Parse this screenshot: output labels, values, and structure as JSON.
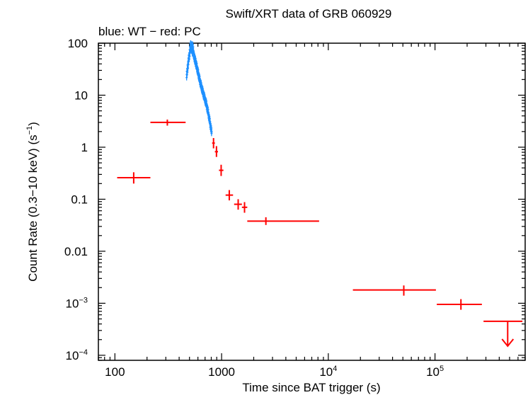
{
  "chart_data": {
    "type": "scatter",
    "title": "Swift/XRT data of GRB 060929",
    "subtitle": "blue: WT − red: PC",
    "xlabel": "Time since BAT trigger (s)",
    "ylabel_parts": {
      "main": "Count Rate (0.3−10 keV) (s",
      "exp": "−1",
      "tail": ")"
    },
    "xscale": "log",
    "yscale": "log",
    "xlim": [
      70,
      700000
    ],
    "ylim": [
      8e-05,
      100
    ],
    "x_ticks": [
      {
        "value": 100,
        "label": "100"
      },
      {
        "value": 1000,
        "label": "1000"
      },
      {
        "value": 10000,
        "base": "10",
        "exp": "4"
      },
      {
        "value": 100000,
        "base": "10",
        "exp": "5"
      }
    ],
    "y_ticks": [
      {
        "value": 100,
        "label": "100"
      },
      {
        "value": 10,
        "label": "10"
      },
      {
        "value": 1,
        "label": "1"
      },
      {
        "value": 0.1,
        "label": "0.1"
      },
      {
        "value": 0.01,
        "label": "0.01"
      },
      {
        "value": 0.001,
        "base": "10",
        "exp": "−3"
      },
      {
        "value": 0.0001,
        "base": "10",
        "exp": "−4"
      }
    ],
    "series": [
      {
        "name": "WT",
        "color": "#1e90ff",
        "mode": "WT",
        "points": [
          [
            470,
            25
          ],
          [
            478,
            30
          ],
          [
            485,
            40
          ],
          [
            492,
            50
          ],
          [
            500,
            60
          ],
          [
            506,
            75
          ],
          [
            512,
            95
          ],
          [
            518,
            80
          ],
          [
            524,
            90
          ],
          [
            530,
            70
          ],
          [
            537,
            85
          ],
          [
            545,
            65
          ],
          [
            552,
            55
          ],
          [
            560,
            50
          ],
          [
            568,
            45
          ],
          [
            576,
            40
          ],
          [
            585,
            35
          ],
          [
            595,
            30
          ],
          [
            605,
            26
          ],
          [
            615,
            22
          ],
          [
            626,
            19
          ],
          [
            638,
            16
          ],
          [
            650,
            14
          ],
          [
            663,
            12
          ],
          [
            676,
            10.5
          ],
          [
            690,
            9
          ],
          [
            705,
            7.8
          ],
          [
            720,
            6.7
          ],
          [
            735,
            5.5
          ],
          [
            750,
            4.5
          ],
          [
            765,
            3.6
          ],
          [
            780,
            2.9
          ],
          [
            795,
            2.3
          ],
          [
            810,
            1.8
          ]
        ]
      },
      {
        "name": "PC",
        "color": "#ff0000",
        "mode": "PC",
        "points": [
          {
            "x": 150,
            "x_lo": 105,
            "x_hi": 215,
            "y": 0.26,
            "y_lo": 0.2,
            "y_hi": 0.33
          },
          {
            "x": 310,
            "x_lo": 215,
            "x_hi": 460,
            "y": 3.0,
            "y_lo": 2.6,
            "y_hi": 3.4
          },
          {
            "x": 840,
            "x_lo": 815,
            "x_hi": 865,
            "y": 1.2,
            "y_lo": 0.95,
            "y_hi": 1.5
          },
          {
            "x": 895,
            "x_lo": 865,
            "x_hi": 925,
            "y": 0.82,
            "y_lo": 0.65,
            "y_hi": 1.05
          },
          {
            "x": 990,
            "x_lo": 945,
            "x_hi": 1040,
            "y": 0.36,
            "y_lo": 0.28,
            "y_hi": 0.46
          },
          {
            "x": 1180,
            "x_lo": 1090,
            "x_hi": 1280,
            "y": 0.12,
            "y_lo": 0.095,
            "y_hi": 0.15
          },
          {
            "x": 1430,
            "x_lo": 1310,
            "x_hi": 1550,
            "y": 0.08,
            "y_lo": 0.063,
            "y_hi": 0.1
          },
          {
            "x": 1640,
            "x_lo": 1550,
            "x_hi": 1740,
            "y": 0.07,
            "y_lo": 0.055,
            "y_hi": 0.088
          },
          {
            "x": 2600,
            "x_lo": 1740,
            "x_hi": 8200,
            "y": 0.038,
            "y_lo": 0.032,
            "y_hi": 0.045
          },
          {
            "x": 51000,
            "x_lo": 17000,
            "x_hi": 102000,
            "y": 0.0018,
            "y_lo": 0.0014,
            "y_hi": 0.0022
          },
          {
            "x": 175000,
            "x_lo": 104000,
            "x_hi": 275000,
            "y": 0.00095,
            "y_lo": 0.00075,
            "y_hi": 0.0012
          },
          {
            "x": 480000,
            "x_lo": 285000,
            "x_hi": 660000,
            "y": 0.00045,
            "upper_limit": true,
            "arrow_to": 0.00015
          }
        ]
      }
    ]
  }
}
